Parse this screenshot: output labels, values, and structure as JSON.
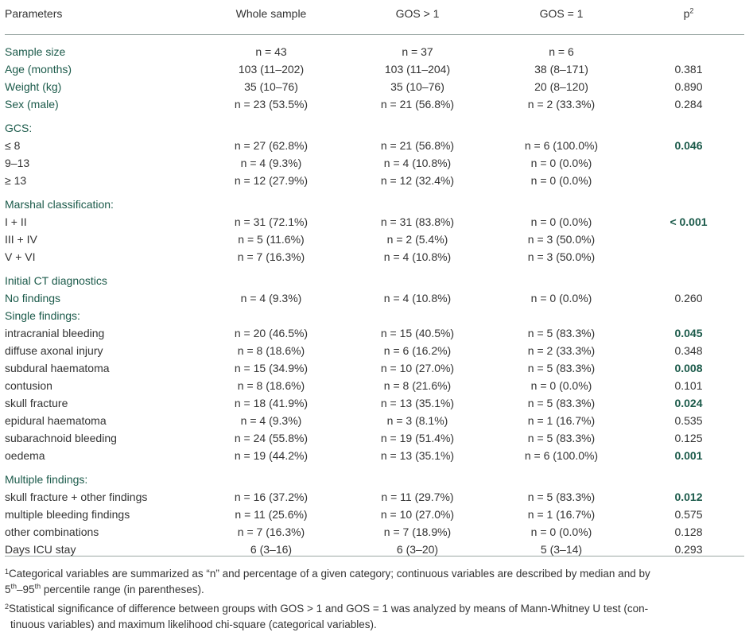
{
  "header": {
    "parameters": "Parameters",
    "whole": "Whole sample",
    "gos_gt1": "GOS > 1",
    "gos_eq1": "GOS = 1",
    "p": "p",
    "p_sup": "2"
  },
  "rows": {
    "sample_size": {
      "label": "Sample size",
      "whole": "n = 43",
      "g1": "n = 37",
      "g2": "n = 6",
      "p": ""
    },
    "age": {
      "label": "Age (months)",
      "whole": "103 (11–202)",
      "g1": "103 (11–204)",
      "g2": "38 (8–171)",
      "p": "0.381"
    },
    "weight": {
      "label": "Weight (kg)",
      "whole": "35 (10–76)",
      "g1": "35 (10–76)",
      "g2": "20 (8–120)",
      "p": "0.890"
    },
    "sex": {
      "label": "Sex (male)",
      "whole": "n = 23 (53.5%)",
      "g1": "n = 21 (56.8%)",
      "g2": "n = 2 (33.3%)",
      "p": "0.284"
    },
    "gcs_heading": {
      "label": "GCS:"
    },
    "gcs_le8": {
      "label": "≤ 8",
      "whole": "n = 27 (62.8%)",
      "g1": "n = 21 (56.8%)",
      "g2": "n = 6 (100.0%)",
      "p": "0.046"
    },
    "gcs_9_13": {
      "label": "9–13",
      "whole": "n = 4 (9.3%)",
      "g1": "n = 4 (10.8%)",
      "g2": "n = 0 (0.0%)",
      "p": ""
    },
    "gcs_ge13": {
      "label": "≥ 13",
      "whole": "n = 12 (27.9%)",
      "g1": "n = 12 (32.4%)",
      "g2": "n = 0 (0.0%)",
      "p": ""
    },
    "marshal_heading": {
      "label": "Marshal classification:"
    },
    "m_1_2": {
      "label": "I + II",
      "whole": "n = 31 (72.1%)",
      "g1": "n = 31 (83.8%)",
      "g2": "n = 0 (0.0%)",
      "p": "< 0.001"
    },
    "m_3_4": {
      "label": "III + IV",
      "whole": "n = 5 (11.6%)",
      "g1": "n = 2 (5.4%)",
      "g2": "n = 3 (50.0%)",
      "p": ""
    },
    "m_5_6": {
      "label": "V + VI",
      "whole": "n = 7 (16.3%)",
      "g1": "n = 4 (10.8%)",
      "g2": "n = 3 (50.0%)",
      "p": ""
    },
    "ct_heading": {
      "label": "Initial CT diagnostics"
    },
    "no_findings": {
      "label": "No findings",
      "whole": "n = 4 (9.3%)",
      "g1": "n = 4 (10.8%)",
      "g2": "n = 0 (0.0%)",
      "p": "0.260"
    },
    "single_heading": {
      "label": "Single findings:"
    },
    "intracranial": {
      "label": "intracranial bleeding",
      "whole": "n = 20 (46.5%)",
      "g1": "n = 15 (40.5%)",
      "g2": "n = 5 (83.3%)",
      "p": "0.045"
    },
    "diffuse": {
      "label": "diffuse axonal injury",
      "whole": "n = 8 (18.6%)",
      "g1": "n = 6 (16.2%)",
      "g2": "n = 2 (33.3%)",
      "p": "0.348"
    },
    "subdural": {
      "label": "subdural haematoma",
      "whole": "n = 15 (34.9%)",
      "g1": "n = 10 (27.0%)",
      "g2": "n = 5 (83.3%)",
      "p": "0.008"
    },
    "contusion": {
      "label": "contusion",
      "whole": "n = 8 (18.6%)",
      "g1": "n = 8 (21.6%)",
      "g2": "n = 0 (0.0%)",
      "p": "0.101"
    },
    "skull": {
      "label": "skull fracture",
      "whole": "n = 18 (41.9%)",
      "g1": "n = 13 (35.1%)",
      "g2": "n = 5 (83.3%)",
      "p": "0.024"
    },
    "epidural": {
      "label": "epidural haematoma",
      "whole": "n = 4 (9.3%)",
      "g1": "n = 3 (8.1%)",
      "g2": "n = 1 (16.7%)",
      "p": "0.535"
    },
    "subarachnoid": {
      "label": "subarachnoid bleeding",
      "whole": "n = 24 (55.8%)",
      "g1": "n = 19 (51.4%)",
      "g2": "n = 5 (83.3%)",
      "p": "0.125"
    },
    "oedema": {
      "label": "oedema",
      "whole": "n = 19 (44.2%)",
      "g1": "n = 13 (35.1%)",
      "g2": "n = 6 (100.0%)",
      "p": "0.001"
    },
    "multiple_heading": {
      "label": "Multiple findings:"
    },
    "skull_other": {
      "label": "skull fracture + other findings",
      "whole": "n = 16 (37.2%)",
      "g1": "n = 11 (29.7%)",
      "g2": "n = 5 (83.3%)",
      "p": "0.012"
    },
    "multi_bleed": {
      "label": "multiple bleeding findings",
      "whole": "n = 11 (25.6%)",
      "g1": "n = 10 (27.0%)",
      "g2": "n = 1 (16.7%)",
      "p": "0.575"
    },
    "other_comb": {
      "label": "other combinations",
      "whole": "n = 7 (16.3%)",
      "g1": "n = 7 (18.9%)",
      "g2": "n = 0 (0.0%)",
      "p": "0.128"
    },
    "icu": {
      "label": "Days ICU stay",
      "whole": "6 (3–16)",
      "g1": "6 (3–20)",
      "g2": "5 (3–14)",
      "p": "0.293"
    }
  },
  "footnotes": {
    "fn1_mark": "1",
    "fn1_a": "Categorical variables are summarized as “n” and percentage of a given category; continuous variables are described by median and by",
    "fn1_b_pre": "5",
    "fn1_b_sup1": "th",
    "fn1_b_mid": "–95",
    "fn1_b_sup2": "th",
    "fn1_b_post": " percentile range (in parentheses).",
    "fn2_mark": "2",
    "fn2_a": "Statistical significance of difference between groups with GOS > 1 and GOS = 1 was analyzed by means of Mann-Whitney U test (con-",
    "fn2_b": "tinuous variables) and maximum likelihood chi-square (categorical variables)."
  },
  "colors": {
    "accent_green": "#1b5a4a",
    "text": "#333333",
    "rule": "#9aa7a3"
  }
}
